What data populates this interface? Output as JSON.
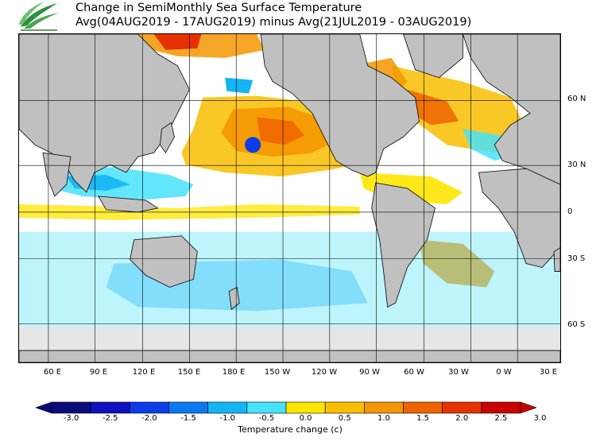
{
  "title": {
    "line1": "Change in SemiMonthly Sea Surface Temperature",
    "line2": "Avg(04AUG2019 - 17AUG2019) minus Avg(21JUL2019 - 03AUG2019)"
  },
  "lat_labels": [
    "60 N",
    "30 N",
    "0",
    "30 S",
    "60 S"
  ],
  "lon_labels": [
    "60 E",
    "90 E",
    "120 E",
    "150 E",
    "180 E",
    "150 W",
    "120 W",
    "90 W",
    "60 W",
    "30 W",
    "0 W",
    "30 E"
  ],
  "colorbar": {
    "ticks": [
      "-3.0",
      "-2.5",
      "-2.0",
      "-1.5",
      "-1.0",
      "-0.5",
      "0.0",
      "0.5",
      "1.0",
      "1.5",
      "2.0",
      "2.5",
      "3.0"
    ],
    "colors": [
      "#0a0a7a",
      "#1010c0",
      "#0a3de8",
      "#0a78f0",
      "#14b4f5",
      "#46e2fa",
      "#ffffff",
      "#ffe600",
      "#f8be00",
      "#f49600",
      "#ee6400",
      "#e63200",
      "#c80000"
    ],
    "label": "Temperature change  (c)"
  },
  "colors": {
    "land": "#c0c0c0",
    "ice": "#e6e6e6",
    "ocean": "#ffffff",
    "grid": "#000000"
  }
}
